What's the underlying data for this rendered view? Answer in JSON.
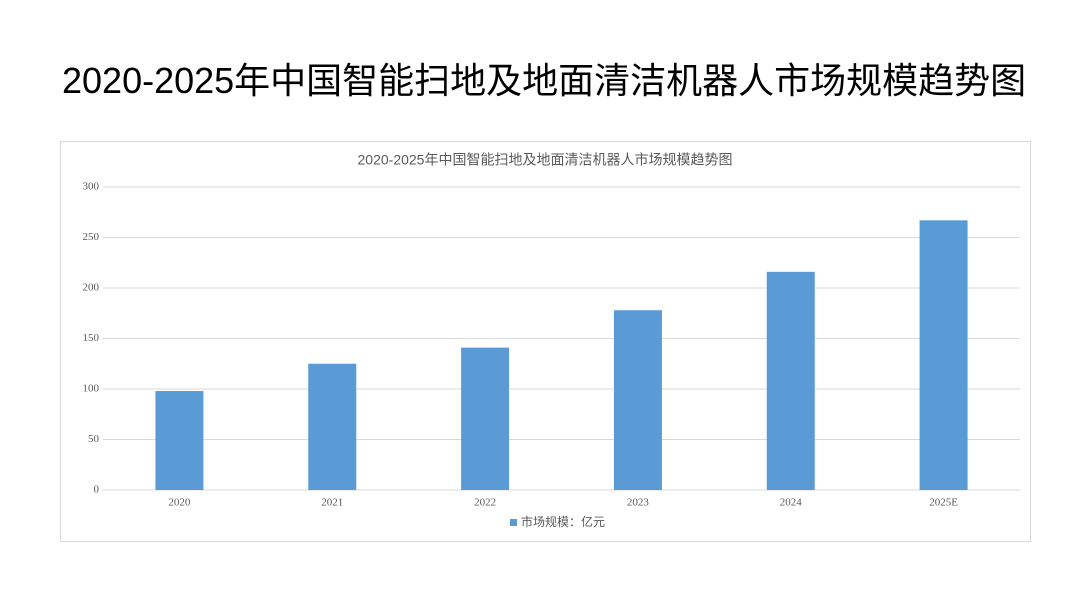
{
  "slide_title": "2020-2025年中国智能扫地及地面清洁机器人市场规模趋势图",
  "chart_data": {
    "type": "bar",
    "title": "2020-2025年中国智能扫地及地面清洁机器人市场规模趋势图",
    "categories": [
      "2020",
      "2021",
      "2022",
      "2023",
      "2024",
      "2025E"
    ],
    "series": [
      {
        "name": "市场规模：亿元",
        "color": "#5b9bd5",
        "values": [
          98,
          125,
          141,
          178,
          216,
          267
        ]
      }
    ],
    "ylim": [
      0,
      300
    ],
    "yticks": [
      0,
      50,
      100,
      150,
      200,
      250,
      300
    ],
    "grid": true,
    "legend": "bottom"
  }
}
